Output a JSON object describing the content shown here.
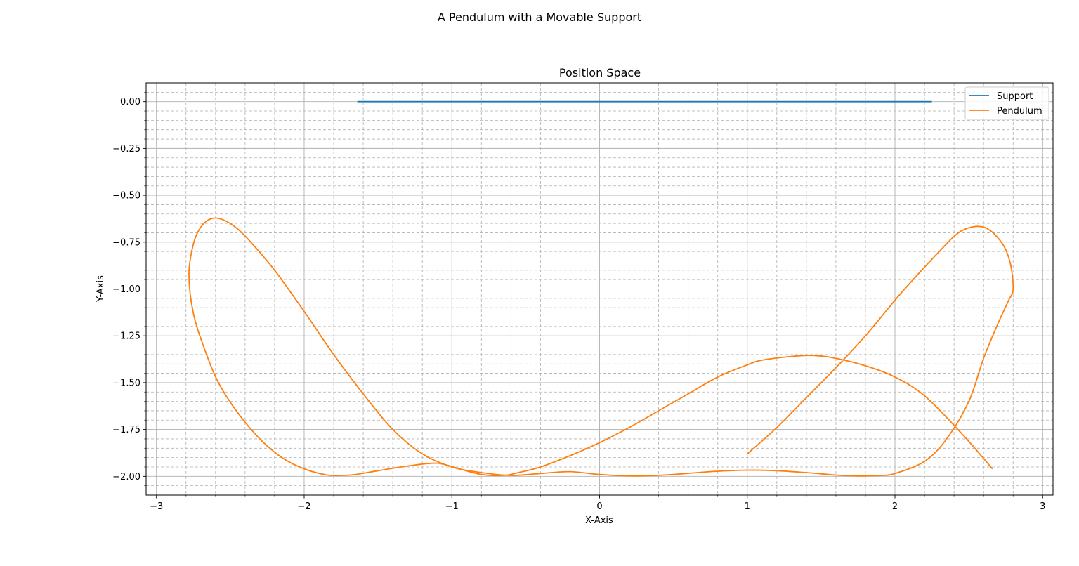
{
  "figure": {
    "suptitle": "A Pendulum with a Movable Support"
  },
  "chart_data": {
    "type": "line",
    "title": "Position Space",
    "xlabel": "X-Axis",
    "ylabel": "Y-Axis",
    "xlim": [
      -3.07,
      3.07
    ],
    "ylim": [
      -2.1,
      0.1
    ],
    "xticks": [
      -3,
      -2,
      -1,
      0,
      1,
      2,
      3
    ],
    "xtick_labels": [
      "−3",
      "−2",
      "−1",
      "0",
      "1",
      "2",
      "3"
    ],
    "xminor_ticks": [
      -2.8,
      -2.6,
      -2.4,
      -2.2,
      -1.8,
      -1.6,
      -1.4,
      -1.2,
      -0.8,
      -0.6,
      -0.4,
      -0.2,
      0.2,
      0.4,
      0.6,
      0.8,
      1.2,
      1.4,
      1.6,
      1.8,
      2.2,
      2.4,
      2.6,
      2.8
    ],
    "yticks": [
      0.0,
      -0.25,
      -0.5,
      -0.75,
      -1.0,
      -1.25,
      -1.5,
      -1.75,
      -2.0
    ],
    "ytick_labels": [
      "0.00",
      "−0.25",
      "−0.50",
      "−0.75",
      "−1.00",
      "−1.25",
      "−1.50",
      "−1.75",
      "−2.00"
    ],
    "yminor_ticks": [
      0.05,
      -0.05,
      -0.1,
      -0.15,
      -0.2,
      -0.3,
      -0.35,
      -0.4,
      -0.45,
      -0.55,
      -0.6,
      -0.65,
      -0.7,
      -0.8,
      -0.85,
      -0.9,
      -0.95,
      -1.05,
      -1.1,
      -1.15,
      -1.2,
      -1.3,
      -1.35,
      -1.4,
      -1.45,
      -1.55,
      -1.6,
      -1.65,
      -1.7,
      -1.8,
      -1.85,
      -1.9,
      -1.95,
      -2.05
    ],
    "grid": {
      "major": true,
      "minor": true,
      "minor_style": "dashed"
    },
    "legend_position": "top-right",
    "series": [
      {
        "name": "Support",
        "color": "#1f77b4",
        "x": [
          -1.64,
          -1.2,
          -0.6,
          0.0,
          0.6,
          1.2,
          1.8,
          2.25
        ],
        "y": [
          0,
          0,
          0,
          0,
          0,
          0,
          0,
          0
        ]
      },
      {
        "name": "Pendulum",
        "color": "#ff7f0e",
        "x": [
          2.66,
          2.45,
          2.2,
          2.0,
          1.8,
          1.6,
          1.45,
          1.3,
          1.1,
          1.0,
          0.8,
          0.6,
          0.4,
          0.2,
          0.0,
          -0.2,
          -0.4,
          -0.55,
          -0.65,
          -0.8,
          -0.95,
          -1.1,
          -1.3,
          -1.5,
          -1.65,
          -1.75,
          -1.85,
          -2.0,
          -2.15,
          -2.3,
          -2.45,
          -2.58,
          -2.67,
          -2.75,
          -2.78,
          -2.75,
          -2.7,
          -2.63,
          -2.55,
          -2.45,
          -2.35,
          -2.2,
          -2.0,
          -1.8,
          -1.6,
          -1.4,
          -1.2,
          -1.0,
          -0.8,
          -0.6,
          -0.4,
          -0.2,
          0.0,
          0.25,
          0.5,
          0.75,
          1.0,
          1.2,
          1.4,
          1.6,
          1.75,
          1.9,
          2.0,
          2.2,
          2.35,
          2.5,
          2.6,
          2.7,
          2.77,
          2.8,
          2.78,
          2.72,
          2.6,
          2.45,
          2.3,
          2.1,
          2.0,
          1.8,
          1.6,
          1.4,
          1.2,
          1.0
        ],
        "y": [
          -1.96,
          -1.77,
          -1.57,
          -1.47,
          -1.41,
          -1.37,
          -1.355,
          -1.36,
          -1.38,
          -1.405,
          -1.47,
          -1.56,
          -1.65,
          -1.74,
          -1.82,
          -1.89,
          -1.95,
          -1.98,
          -1.995,
          -1.99,
          -1.96,
          -1.93,
          -1.945,
          -1.97,
          -1.99,
          -1.995,
          -1.992,
          -1.96,
          -1.9,
          -1.8,
          -1.66,
          -1.5,
          -1.33,
          -1.13,
          -0.92,
          -0.76,
          -0.67,
          -0.625,
          -0.63,
          -0.68,
          -0.76,
          -0.9,
          -1.12,
          -1.35,
          -1.56,
          -1.75,
          -1.88,
          -1.95,
          -1.98,
          -1.995,
          -1.985,
          -1.975,
          -1.99,
          -1.998,
          -1.99,
          -1.975,
          -1.967,
          -1.97,
          -1.98,
          -1.993,
          -1.998,
          -1.995,
          -1.985,
          -1.92,
          -1.8,
          -1.6,
          -1.37,
          -1.18,
          -1.06,
          -1.0,
          -0.86,
          -0.75,
          -0.67,
          -0.69,
          -0.8,
          -0.97,
          -1.06,
          -1.25,
          -1.42,
          -1.58,
          -1.74,
          -1.88
        ]
      }
    ]
  }
}
